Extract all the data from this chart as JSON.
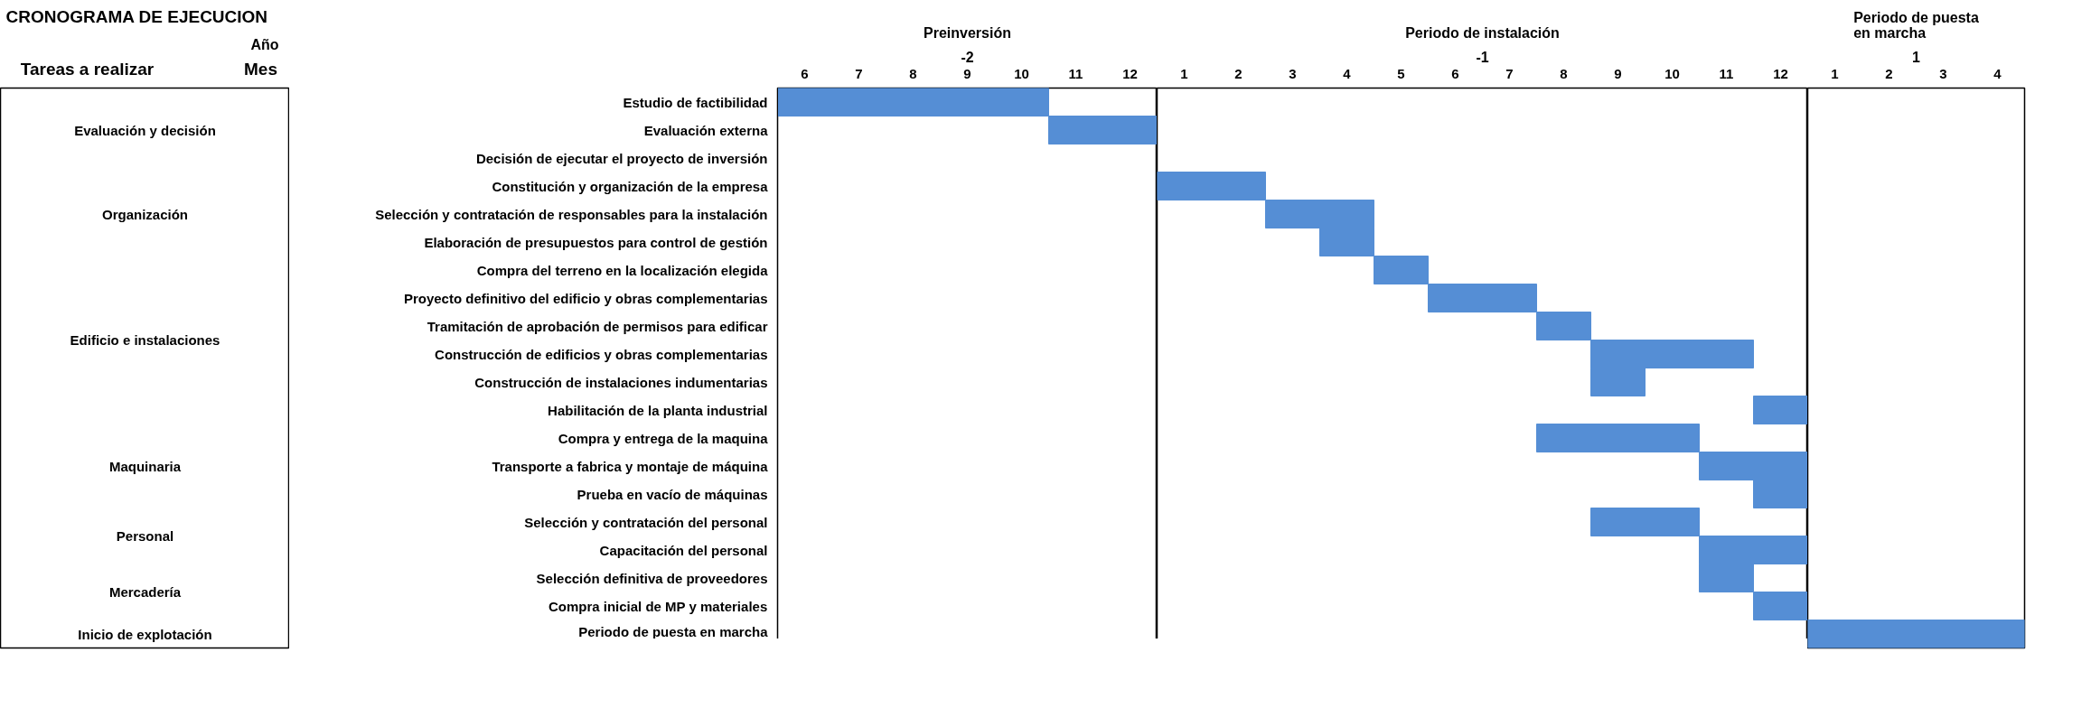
{
  "chart_data": [
    {
      "type": "other",
      "title": "CRONOGRAMA DE EJECUCION",
      "annotations": [
        "Año",
        "Tareas a realizar",
        "Mes",
        "Evaluación y decisión",
        "Organización",
        "Edificio e instalaciones",
        "Maquinaria",
        "Personal",
        "Mercadería",
        "Inicio de explotación"
      ]
    },
    {
      "type": "bar",
      "orientation": "horizontal",
      "title": "Preinversión",
      "subtitle": "-2",
      "categories": [
        "Estudio de factibilidad",
        "Evaluación externa",
        "Decisión de ejecutar el proyecto de inversión",
        "Constitución y organización de la empresa",
        "Selección y contratación de responsables para la instalación",
        "Elaboración de presupuestos para control de gestión",
        "Compra del terreno en la localización elegida",
        "Proyecto definitivo del edificio y obras complementarias",
        "Tramitación de aprobación de permisos para edificar",
        "Construcción de edificios y obras complementarias",
        "Construcción de instalaciones indumentarias",
        "Habilitación de la planta industrial",
        "Compra y entrega de la maquina",
        "Transporte a fabrica y montaje de máquina",
        "Prueba en vacío de máquinas",
        "Selección y contratación del personal",
        "Capacitación del personal",
        "Selección definitiva de proveedores",
        "Compra inicial de MP y materiales",
        "Periodo de puesta en marcha"
      ],
      "series": [
        {
          "color": "#558ed5",
          "base": [
            5.5,
            10.5,
            null,
            null,
            null,
            null,
            null,
            null,
            null,
            null,
            null,
            null,
            null,
            null,
            null,
            null,
            null,
            null,
            null,
            null
          ],
          "values": [
            5,
            2,
            null,
            null,
            null,
            null,
            null,
            null,
            null,
            null,
            null,
            null,
            null,
            null,
            null,
            null,
            null,
            null,
            null,
            null
          ]
        }
      ],
      "xlim": [
        5.5,
        12.5
      ],
      "xticks": [
        6,
        7,
        8,
        9,
        10,
        11,
        12
      ]
    },
    {
      "type": "bar",
      "orientation": "horizontal",
      "title": "Periodo de instalación",
      "subtitle": "-1",
      "tick_labels": "x",
      "series": [
        {
          "color": "#558ed5",
          "base": [
            null,
            null,
            null,
            0.5,
            2.5,
            3.5,
            4.5,
            5.5,
            7.5,
            8.5,
            8.5,
            11.5,
            7.5,
            10.5,
            11.5,
            8.5,
            10.5,
            10.5,
            11.5,
            null
          ],
          "values": [
            null,
            null,
            null,
            2,
            2,
            1,
            1,
            2,
            1,
            3,
            1,
            1,
            3,
            2,
            1,
            2,
            2,
            1,
            1,
            null
          ]
        }
      ],
      "xlim": [
        0.5,
        12.5
      ],
      "xticks": [
        1,
        2,
        3,
        4,
        5,
        6,
        7,
        8,
        9,
        10,
        11,
        12
      ]
    },
    {
      "type": "bar",
      "orientation": "horizontal",
      "title": "Periodo de puesta en marcha",
      "subtitle": "1",
      "tick_labels": "x",
      "series": [
        {
          "color": "#558ed5",
          "base": [
            null,
            null,
            null,
            null,
            null,
            null,
            null,
            null,
            null,
            null,
            null,
            null,
            null,
            null,
            null,
            null,
            null,
            null,
            null,
            0.5
          ],
          "values": [
            null,
            null,
            null,
            null,
            null,
            null,
            null,
            null,
            null,
            null,
            null,
            null,
            null,
            null,
            null,
            null,
            null,
            null,
            null,
            4
          ]
        }
      ],
      "xlim": [
        0.5,
        4.5
      ],
      "xticks": [
        1,
        2,
        3,
        4
      ]
    }
  ]
}
